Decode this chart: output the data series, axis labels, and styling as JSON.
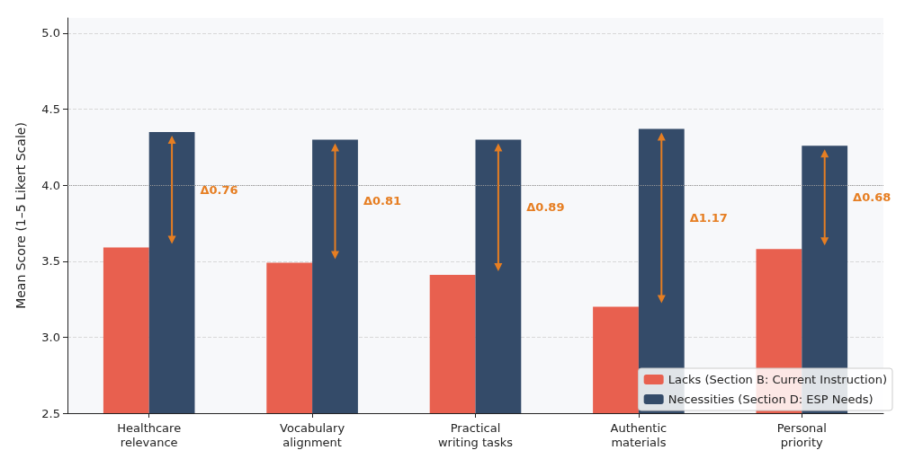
{
  "chart_data": {
    "type": "bar",
    "ylabel": "Mean Score (1–5 Likert Scale)",
    "categories": [
      "Healthcare\nrelevance",
      "Vocabulary\nalignment",
      "Practical\nwriting tasks",
      "Authentic\nmaterials",
      "Personal\npriority"
    ],
    "series": [
      {
        "name": "Lacks (Section B: Current Instruction)",
        "color": "#e8604f",
        "values": [
          3.59,
          3.49,
          3.41,
          3.2,
          3.58
        ]
      },
      {
        "name": "Necessities (Section D: ESP Needs)",
        "color": "#344b69",
        "values": [
          4.35,
          4.3,
          4.3,
          4.37,
          4.26
        ]
      }
    ],
    "ylim": [
      2.5,
      5.1
    ],
    "yticks": [
      2.5,
      {
        "value": 3,
        "label": "3.0"
      },
      3.5,
      {
        "value": 4,
        "label": "4.0"
      },
      4.5,
      {
        "value": 5,
        "label": "5.0"
      }
    ],
    "grid": "y",
    "legend": "bottom right",
    "ref_lines": [
      {
        "axis": "y",
        "value": 4.0,
        "color": "#999999",
        "line_style": "dotted"
      }
    ],
    "annotations": [
      "Δ0.76",
      "Δ0.81",
      "Δ0.89",
      "Δ1.17",
      "Δ0.68"
    ]
  }
}
